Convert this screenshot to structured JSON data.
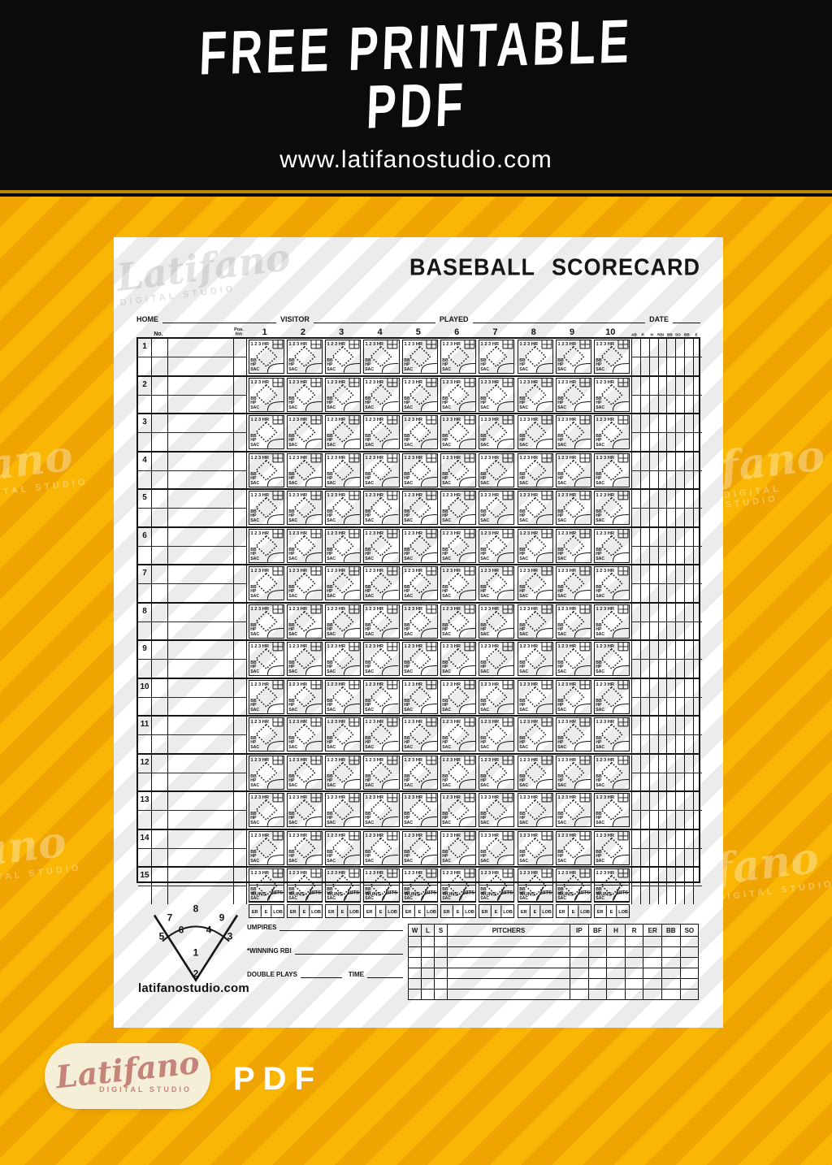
{
  "banner": {
    "title_line1": "FREE PRINTABLE",
    "title_line2": "PDF",
    "website": "www.latifanostudio.com"
  },
  "colors": {
    "background_yellow": "#F2A900",
    "stripe_yellow_light": "#F9B604",
    "stripe_yellow_dark": "#EFA402",
    "banner_black": "#0B0B0B",
    "ink": "#151515",
    "logo_cream": "#F6EFD8",
    "logo_rose": "#C4837B",
    "white": "#FFFFFF"
  },
  "watermark": {
    "script": "Latifano",
    "script_partial": "fano",
    "subtitle": "DIGITAL STUDIO"
  },
  "scorecard": {
    "title": "BASEBALL SCORECARD",
    "info_labels": {
      "home": "HOME",
      "visitor": "VISITOR",
      "played": "PLAYED",
      "date": "DATE"
    },
    "header": {
      "no": "No.",
      "pos": "Pos.",
      "inn": "Inn",
      "innings": [
        "1",
        "2",
        "3",
        "4",
        "5",
        "6",
        "7",
        "8",
        "9",
        "10"
      ],
      "stats": [
        "AB",
        "R",
        "H",
        "RBI",
        "BB",
        "SO",
        "BB",
        "E"
      ]
    },
    "batting_order": [
      "1",
      "2",
      "3",
      "4",
      "5",
      "6",
      "7",
      "8",
      "9",
      "10",
      "11",
      "12",
      "13",
      "14",
      "15"
    ],
    "inning_cell": {
      "counts": "1 2 3 HR",
      "walk": "BB",
      "hit_by_pitch": "HP",
      "sacrifice": "SAC"
    },
    "totals_row": {
      "runs": "RUNS",
      "hits": "HITS"
    },
    "per_inning_stats": [
      "ER",
      "E",
      "LOB"
    ],
    "field_positions": {
      "outfield": [
        "7",
        "8",
        "9"
      ],
      "infield": [
        "5",
        "6",
        "4",
        "3"
      ],
      "pitcher": "1",
      "catcher": "2"
    },
    "footer_fields": {
      "umpires": "UMPIRES",
      "winning_rbi": "*WINNING RBI",
      "double_plays": "DOUBLE PLAYS",
      "time": "TIME"
    },
    "pitchers_table": {
      "headers": [
        "W",
        "L",
        "S",
        "PITCHERS",
        "IP",
        "BF",
        "H",
        "R",
        "ER",
        "BB",
        "SO"
      ],
      "empty_rows": 6
    },
    "website": "latifanostudio.com"
  },
  "logo": {
    "brand": "Latifano",
    "subtitle": "DIGITAL STUDIO",
    "format_label": "PDF"
  }
}
